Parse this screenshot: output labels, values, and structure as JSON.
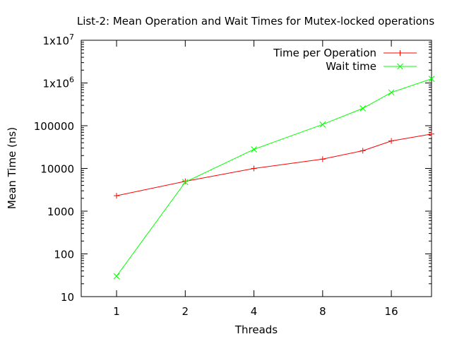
{
  "chart_data": {
    "type": "line",
    "title": "List-2: Mean Operation and Wait Times for Mutex-locked operations",
    "xlabel": "Threads",
    "ylabel": "Mean Time (ns)",
    "x_scale": "log2",
    "y_scale": "log10",
    "xlim": [
      0.7,
      24
    ],
    "ylim": [
      10,
      10000000
    ],
    "x_ticks": [
      {
        "value": 1,
        "label": "1"
      },
      {
        "value": 2,
        "label": "2"
      },
      {
        "value": 4,
        "label": "4"
      },
      {
        "value": 8,
        "label": "8"
      },
      {
        "value": 16,
        "label": "16"
      }
    ],
    "y_ticks": [
      {
        "value": 10,
        "label": "10"
      },
      {
        "value": 100,
        "label": "100"
      },
      {
        "value": 1000,
        "label": "1000"
      },
      {
        "value": 10000,
        "label": "10000"
      },
      {
        "value": 100000,
        "label": "100000"
      },
      {
        "value": 1000000,
        "label": "1x10",
        "sup": "6"
      },
      {
        "value": 10000000,
        "label": "1x10",
        "sup": "7"
      }
    ],
    "grid": false,
    "legend_position": "top-right",
    "series": [
      {
        "name": "Time per Operation",
        "color": "#ff0000",
        "marker": "plus",
        "x": [
          1,
          2,
          4,
          8,
          12,
          16,
          24
        ],
        "y": [
          2300,
          5000,
          10000,
          16500,
          26000,
          44000,
          64000
        ]
      },
      {
        "name": "Wait time",
        "color": "#00ff00",
        "marker": "cross",
        "x": [
          1,
          2,
          4,
          8,
          12,
          16,
          24
        ],
        "y": [
          30,
          4800,
          28000,
          107000,
          255000,
          600000,
          1250000
        ]
      }
    ]
  }
}
